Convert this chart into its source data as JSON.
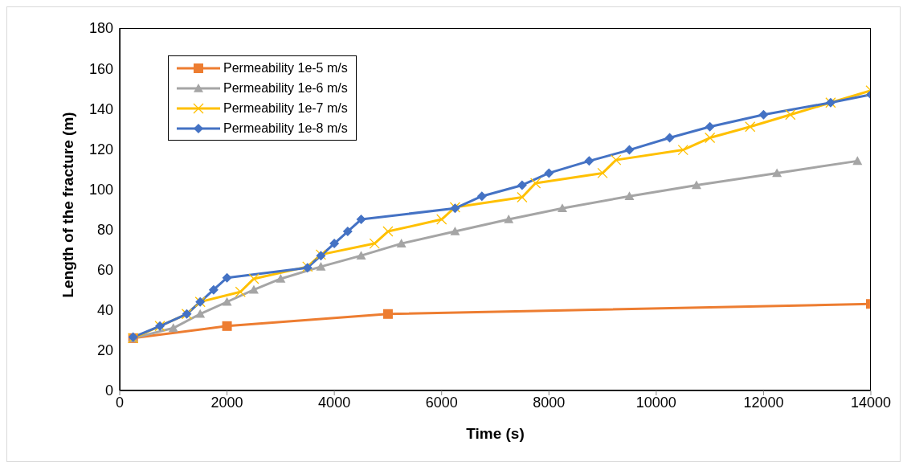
{
  "chart_data": {
    "type": "line",
    "xlabel": "Time (s)",
    "ylabel": "Length of the fracture (m)",
    "xlim": [
      0,
      14000
    ],
    "xticks": [
      0,
      2000,
      4000,
      6000,
      8000,
      10000,
      12000,
      14000
    ],
    "ylim": [
      0,
      180
    ],
    "yticks": [
      0,
      20,
      40,
      60,
      80,
      100,
      120,
      140,
      160,
      180
    ],
    "grid": false,
    "legend": "top left",
    "line_style": "solid",
    "series": [
      {
        "name": "Permeability 1e-5 m/s",
        "color": "#ed7d31",
        "marker": "square",
        "x": [
          250,
          2000,
          5000,
          14000
        ],
        "values": [
          26,
          32,
          38,
          43
        ]
      },
      {
        "name": "Permeability 1e-6 m/s",
        "color": "#a5a5a5",
        "marker": "triangle",
        "x": [
          250,
          1000,
          1500,
          2000,
          2500,
          3000,
          3750,
          4500,
          5250,
          6250,
          7250,
          8250,
          9500,
          10750,
          12250,
          13750
        ],
        "values": [
          26,
          31,
          38,
          44,
          50,
          55.5,
          61.5,
          67,
          73,
          79,
          85,
          90.5,
          96.5,
          102,
          108,
          114
        ]
      },
      {
        "name": "Permeability 1e-7 m/s",
        "color": "#ffc000",
        "marker": "cross",
        "x": [
          250,
          750,
          1250,
          1500,
          2250,
          2500,
          3500,
          3750,
          4750,
          5000,
          6000,
          6250,
          7500,
          7750,
          9000,
          9250,
          10500,
          11000,
          11750,
          12500,
          13250,
          14000
        ],
        "values": [
          26,
          32,
          38,
          44,
          49,
          55.5,
          61.5,
          67.5,
          73,
          79,
          85,
          91,
          96,
          103,
          108,
          114.5,
          119.5,
          125.5,
          131,
          137,
          143,
          149
        ]
      },
      {
        "name": "Permeability 1e-8 m/s",
        "color": "#4472c4",
        "marker": "diamond",
        "x": [
          250,
          750,
          1250,
          1500,
          1750,
          2000,
          3500,
          3750,
          4000,
          4250,
          4500,
          6250,
          6750,
          7500,
          8000,
          8750,
          9500,
          10250,
          11000,
          12000,
          13250,
          14000
        ],
        "values": [
          26.5,
          32,
          38,
          44,
          50,
          56,
          61,
          67,
          73,
          79,
          85,
          90.5,
          96.5,
          102,
          108,
          114,
          119.5,
          125.5,
          131,
          137,
          143,
          147
        ]
      }
    ]
  }
}
